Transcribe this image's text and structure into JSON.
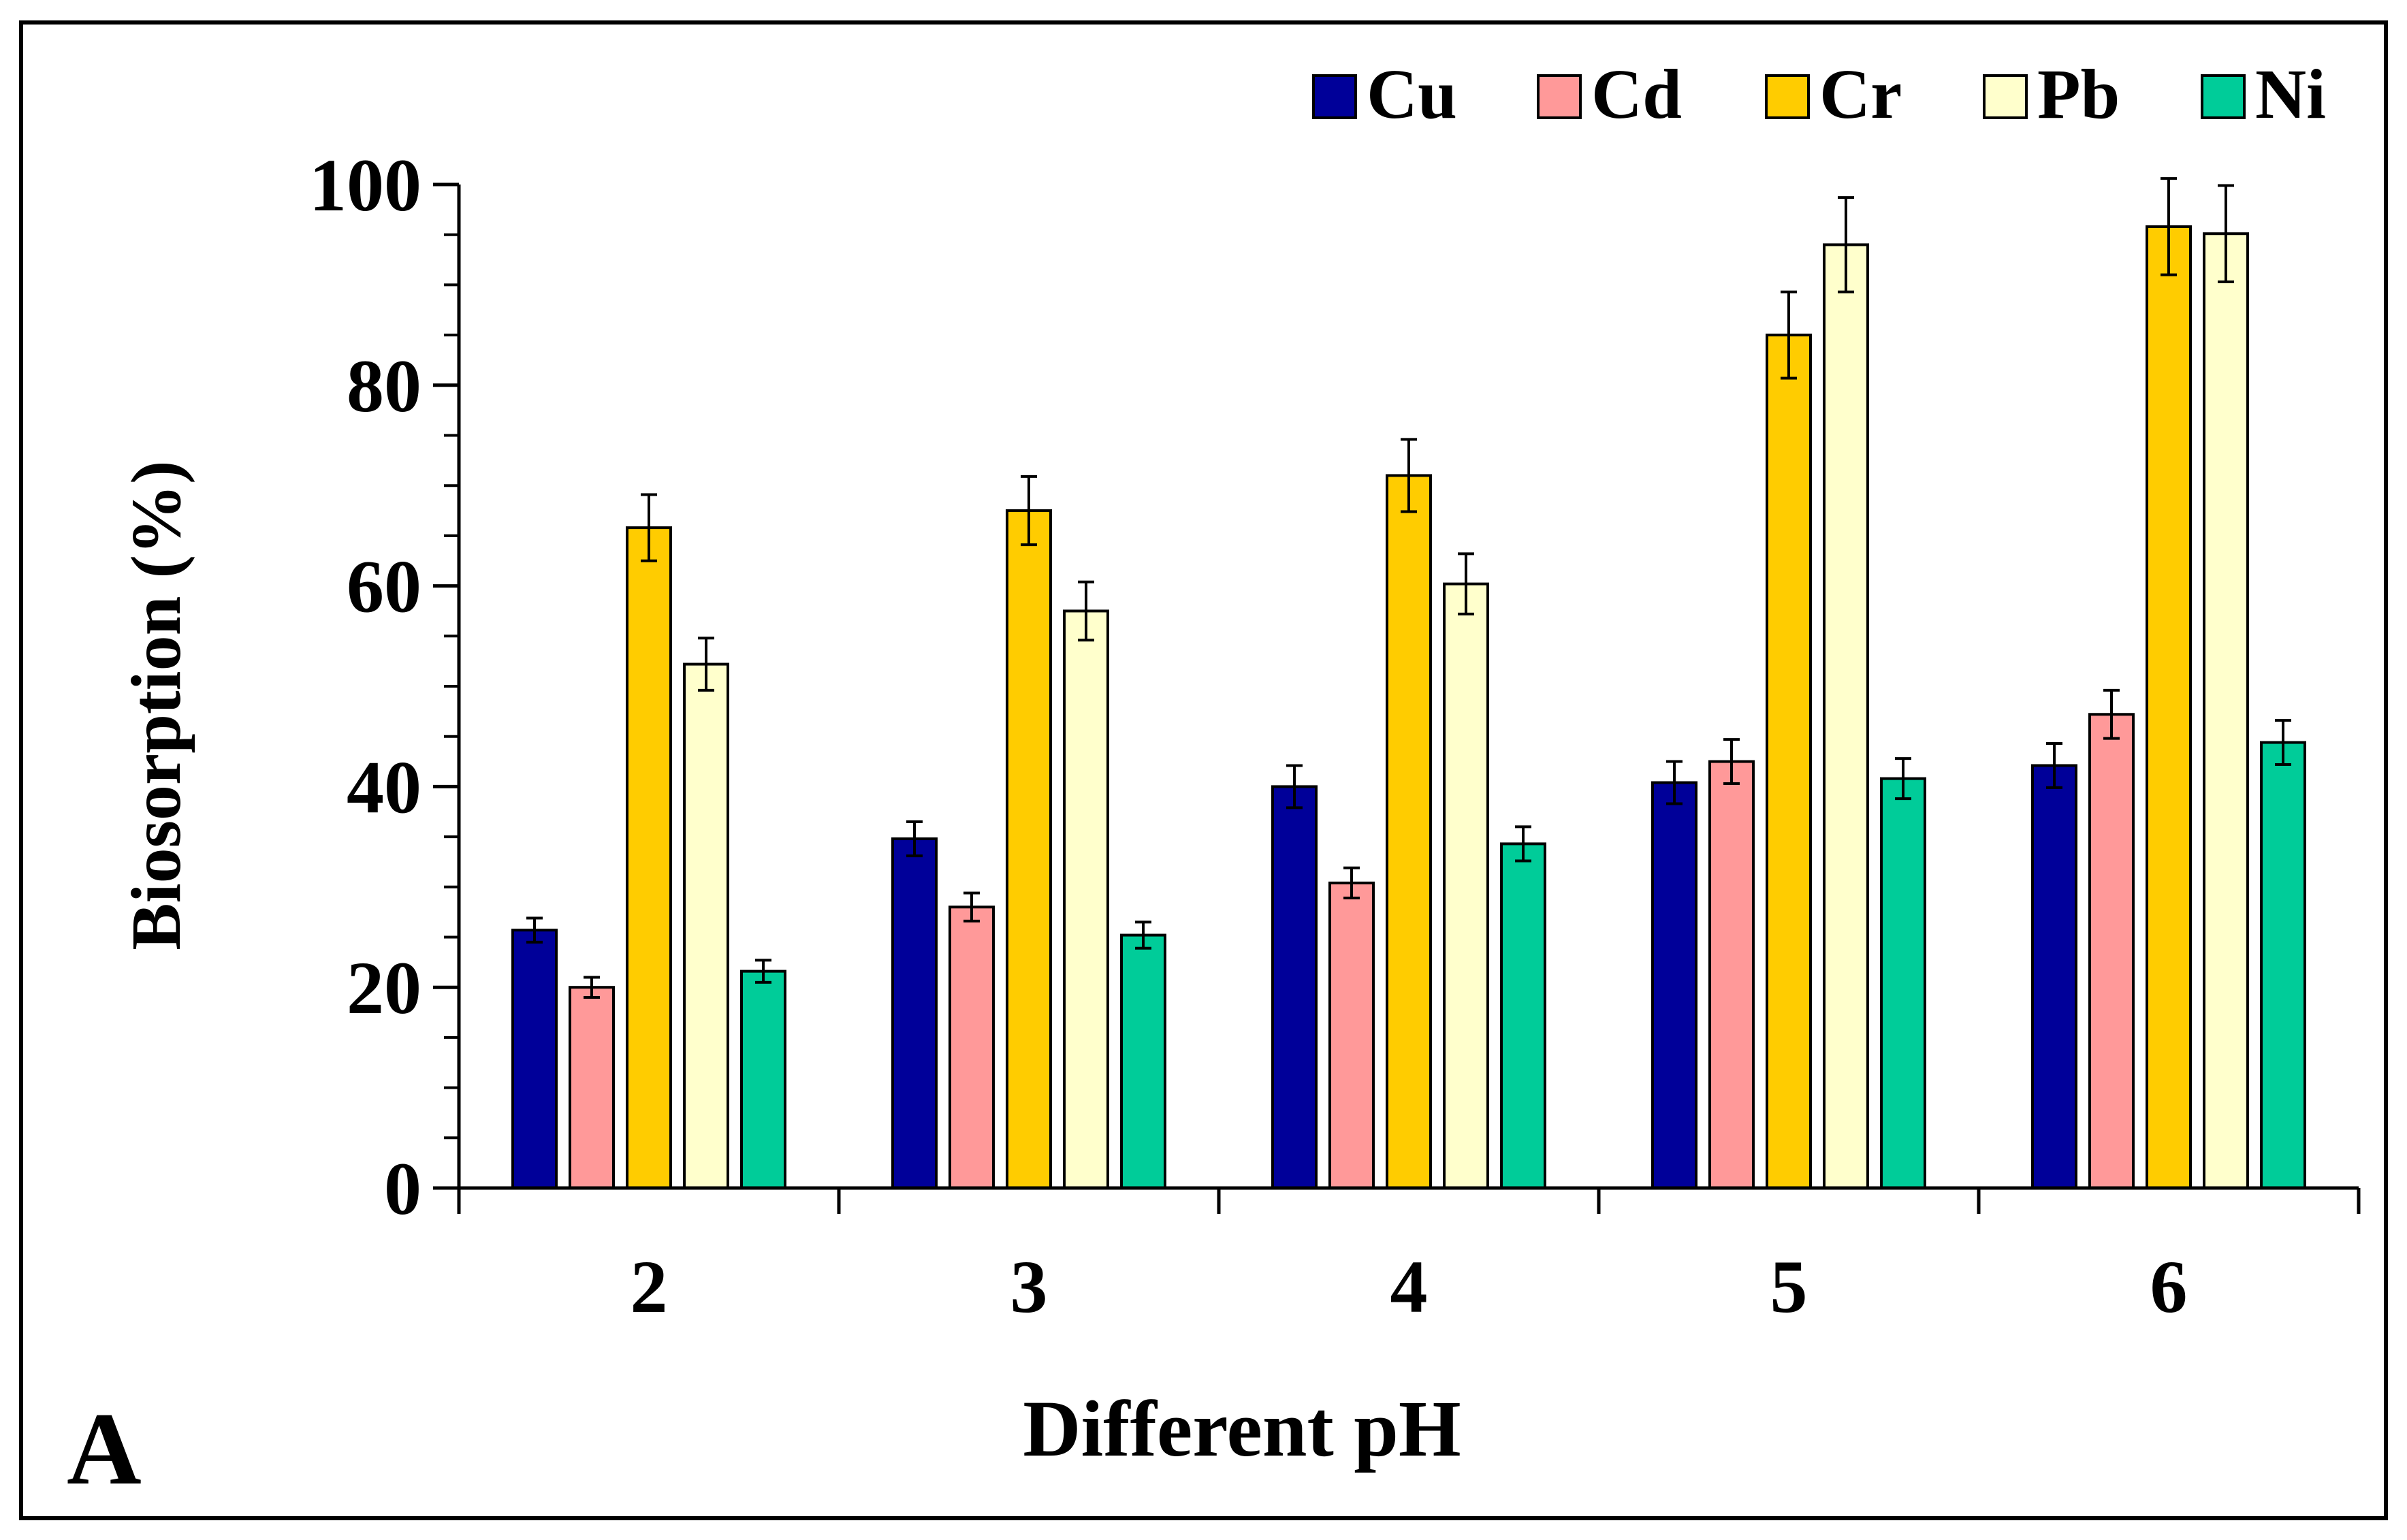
{
  "chart_data": {
    "type": "bar",
    "panel_label": "A",
    "xlabel": "Different pH",
    "ylabel": "Biosorption (%)",
    "ylim": [
      0,
      100
    ],
    "yticks": [
      0,
      20,
      40,
      60,
      80,
      100
    ],
    "grid": false,
    "legend_position": "top-right",
    "categories": [
      "2",
      "3",
      "4",
      "5",
      "6"
    ],
    "series": [
      {
        "name": "Cu",
        "color": "#000099",
        "values": [
          25.7,
          34.8,
          40.0,
          40.4,
          42.1
        ],
        "errors": [
          1.2,
          1.7,
          2.1,
          2.1,
          2.2
        ]
      },
      {
        "name": "Cd",
        "color": "#FF9999",
        "values": [
          20.0,
          28.0,
          30.4,
          42.5,
          47.2
        ],
        "errors": [
          1.0,
          1.4,
          1.5,
          2.2,
          2.4
        ]
      },
      {
        "name": "Cr",
        "color": "#FFCC00",
        "values": [
          65.8,
          67.5,
          71.0,
          85.0,
          95.8
        ],
        "errors": [
          3.3,
          3.4,
          3.6,
          4.3,
          4.8
        ]
      },
      {
        "name": "Pb",
        "color": "#FFFFCC",
        "values": [
          52.2,
          57.5,
          60.2,
          94.0,
          95.1
        ],
        "errors": [
          2.6,
          2.9,
          3.0,
          4.7,
          4.8
        ]
      },
      {
        "name": "Ni",
        "color": "#00CC99",
        "values": [
          21.6,
          25.2,
          34.3,
          40.8,
          44.4
        ],
        "errors": [
          1.1,
          1.3,
          1.7,
          2.0,
          2.2
        ]
      }
    ]
  }
}
